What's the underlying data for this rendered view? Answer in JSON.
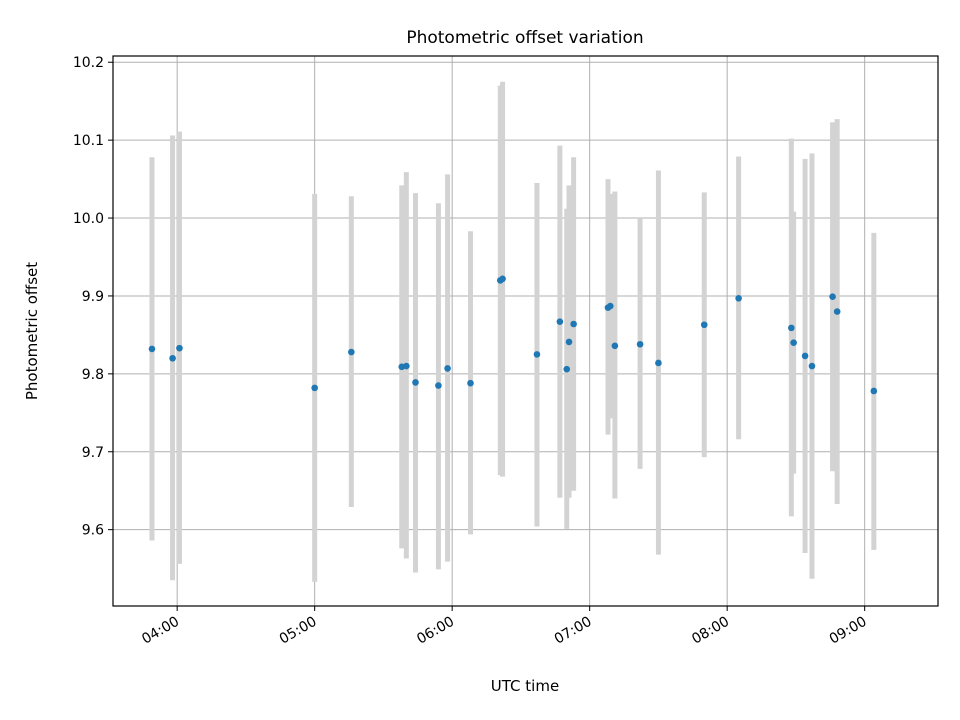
{
  "chart_data": {
    "type": "scatter",
    "title": "Photometric offset variation",
    "xlabel": "UTC time",
    "ylabel": "Photometric offset",
    "x_unit": "UTC time of day (HH:MM)",
    "xlim": [
      "03:32",
      "09:32"
    ],
    "ylim": [
      9.502,
      10.208
    ],
    "x_ticks": [
      "04:00",
      "05:00",
      "06:00",
      "07:00",
      "08:00",
      "09:00"
    ],
    "y_ticks": [
      9.6,
      9.7,
      9.8,
      9.9,
      10.0,
      10.1,
      10.2
    ],
    "y_tick_labels": [
      "9.6",
      "9.7",
      "9.8",
      "9.9",
      "10.0",
      "10.1",
      "10.2"
    ],
    "grid": true,
    "point_color": "#1f77b4",
    "errorbar_color": "#d3d3d3",
    "series": [
      {
        "points": [
          {
            "x": "03:49",
            "y": 9.832,
            "ylow": 9.586,
            "yhigh": 10.078
          },
          {
            "x": "03:58",
            "y": 9.82,
            "ylow": 9.535,
            "yhigh": 10.106
          },
          {
            "x": "04:01",
            "y": 9.833,
            "ylow": 9.556,
            "yhigh": 10.111
          },
          {
            "x": "05:00",
            "y": 9.782,
            "ylow": 9.533,
            "yhigh": 10.031
          },
          {
            "x": "05:16",
            "y": 9.828,
            "ylow": 9.629,
            "yhigh": 10.028
          },
          {
            "x": "05:38",
            "y": 9.809,
            "ylow": 9.576,
            "yhigh": 10.042
          },
          {
            "x": "05:40",
            "y": 9.81,
            "ylow": 9.563,
            "yhigh": 10.059
          },
          {
            "x": "05:44",
            "y": 9.789,
            "ylow": 9.545,
            "yhigh": 10.032
          },
          {
            "x": "05:54",
            "y": 9.785,
            "ylow": 9.549,
            "yhigh": 10.019
          },
          {
            "x": "05:58",
            "y": 9.807,
            "ylow": 9.559,
            "yhigh": 10.056
          },
          {
            "x": "06:08",
            "y": 9.788,
            "ylow": 9.594,
            "yhigh": 9.983
          },
          {
            "x": "06:21",
            "y": 9.92,
            "ylow": 9.67,
            "yhigh": 10.17
          },
          {
            "x": "06:22",
            "y": 9.922,
            "ylow": 9.668,
            "yhigh": 10.175
          },
          {
            "x": "06:37",
            "y": 9.825,
            "ylow": 9.604,
            "yhigh": 10.045
          },
          {
            "x": "06:47",
            "y": 9.867,
            "ylow": 9.641,
            "yhigh": 10.093
          },
          {
            "x": "06:50",
            "y": 9.806,
            "ylow": 9.601,
            "yhigh": 10.012
          },
          {
            "x": "06:51",
            "y": 9.841,
            "ylow": 9.641,
            "yhigh": 10.042
          },
          {
            "x": "06:53",
            "y": 9.864,
            "ylow": 9.65,
            "yhigh": 10.078
          },
          {
            "x": "07:08",
            "y": 9.885,
            "ylow": 9.722,
            "yhigh": 10.05
          },
          {
            "x": "07:09",
            "y": 9.887,
            "ylow": 9.743,
            "yhigh": 10.031
          },
          {
            "x": "07:11",
            "y": 9.836,
            "ylow": 9.64,
            "yhigh": 10.034
          },
          {
            "x": "07:22",
            "y": 9.838,
            "ylow": 9.678,
            "yhigh": 9.999
          },
          {
            "x": "07:30",
            "y": 9.814,
            "ylow": 9.568,
            "yhigh": 10.061
          },
          {
            "x": "07:50",
            "y": 9.863,
            "ylow": 9.693,
            "yhigh": 10.033
          },
          {
            "x": "08:05",
            "y": 9.897,
            "ylow": 9.716,
            "yhigh": 10.079
          },
          {
            "x": "08:28",
            "y": 9.859,
            "ylow": 9.617,
            "yhigh": 10.102
          },
          {
            "x": "08:29",
            "y": 9.84,
            "ylow": 9.672,
            "yhigh": 10.008
          },
          {
            "x": "08:34",
            "y": 9.823,
            "ylow": 9.57,
            "yhigh": 10.076
          },
          {
            "x": "08:37",
            "y": 9.81,
            "ylow": 9.537,
            "yhigh": 10.083
          },
          {
            "x": "08:46",
            "y": 9.899,
            "ylow": 9.675,
            "yhigh": 10.123
          },
          {
            "x": "08:48",
            "y": 9.88,
            "ylow": 9.633,
            "yhigh": 10.127
          },
          {
            "x": "09:04",
            "y": 9.778,
            "ylow": 9.574,
            "yhigh": 9.981
          }
        ]
      }
    ]
  }
}
